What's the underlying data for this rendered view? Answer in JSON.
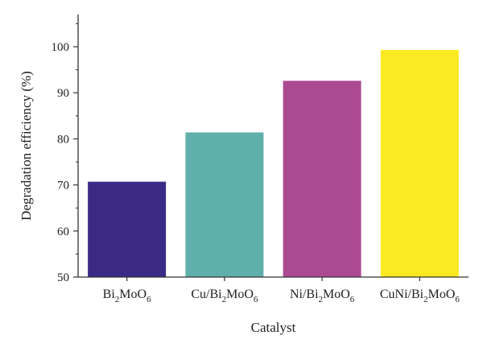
{
  "chart_data": {
    "type": "bar",
    "title": "",
    "xlabel": "Catalyst",
    "ylabel": "Degradation efficiency (%)",
    "ylim": [
      50,
      107
    ],
    "yticks": [
      50,
      60,
      70,
      80,
      90,
      100
    ],
    "grid": false,
    "categories": [
      {
        "base": "Bi",
        "sub1": "2",
        "mid": "MoO",
        "sub2": "6",
        "prefix": ""
      },
      {
        "base": "Bi",
        "sub1": "2",
        "mid": "MoO",
        "sub2": "6",
        "prefix": "Cu/"
      },
      {
        "base": "Bi",
        "sub1": "2",
        "mid": "MoO",
        "sub2": "6",
        "prefix": "Ni/"
      },
      {
        "base": "Bi",
        "sub1": "2",
        "mid": "MoO",
        "sub2": "6",
        "prefix": "CuNi/"
      }
    ],
    "values": [
      70.7,
      81.4,
      92.6,
      99.3
    ],
    "colors": [
      "#3a2a85",
      "#5fb0aa",
      "#ab4a91",
      "#fbe921"
    ]
  }
}
